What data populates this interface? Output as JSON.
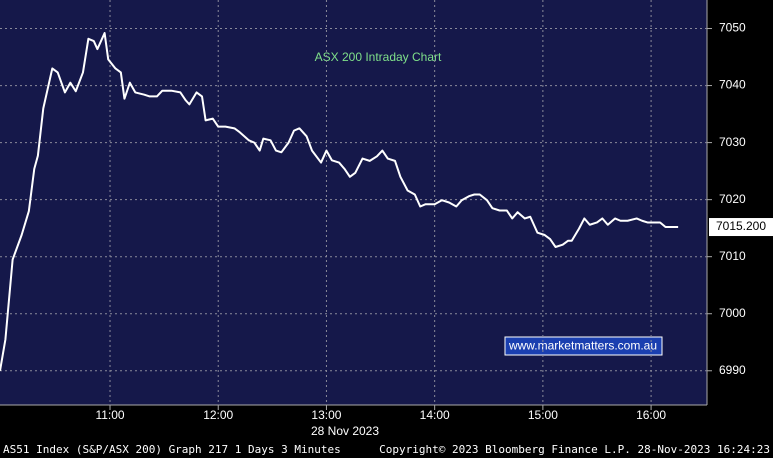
{
  "chart_data": {
    "type": "line",
    "title": "ASX 200 Intraday Chart",
    "annotation": "www.marketmatters.com.au",
    "xlabel": "28 Nov 2023",
    "x": [
      599,
      602,
      606,
      611,
      615,
      618,
      620,
      623,
      628,
      631,
      635,
      638,
      641,
      645,
      648,
      651,
      653,
      657,
      659,
      663,
      666,
      668,
      671,
      674,
      679,
      682,
      686,
      689,
      694,
      699,
      702,
      704,
      708,
      711,
      713,
      717,
      720,
      724,
      729,
      732,
      737,
      740,
      743,
      745,
      749,
      752,
      755,
      759,
      762,
      765,
      769,
      772,
      777,
      780,
      783,
      787,
      790,
      793,
      796,
      800,
      804,
      808,
      811,
      814,
      818,
      821,
      825,
      829,
      832,
      835,
      840,
      844,
      848,
      852,
      855,
      859,
      862,
      865,
      869,
      872,
      876,
      880,
      883,
      886,
      890,
      893,
      897,
      901,
      904,
      907,
      911,
      914,
      916,
      920,
      923,
      926,
      930,
      933,
      936,
      940,
      943,
      947,
      952,
      955,
      958,
      962,
      965,
      968,
      975
    ],
    "series": [
      {
        "name": "AS51 Index",
        "color": "#ffffff",
        "values": [
          6990,
          6995.5,
          7009.5,
          7013.8,
          7018,
          7025.4,
          7027.7,
          7036,
          7043,
          7042.3,
          7038.8,
          7040.5,
          7039,
          7042.3,
          7048.2,
          7047.8,
          7046.4,
          7049.2,
          7044.6,
          7043,
          7042.3,
          7037.7,
          7040.5,
          7038.8,
          7038.4,
          7038.1,
          7038.1,
          7039.1,
          7039.1,
          7038.8,
          7037.4,
          7036.7,
          7038.8,
          7038.1,
          7033.9,
          7034.2,
          7032.8,
          7032.8,
          7032.5,
          7031.8,
          7030.4,
          7030,
          7028.6,
          7030.7,
          7030.4,
          7028.6,
          7028.3,
          7030,
          7032.1,
          7032.5,
          7031.1,
          7028.6,
          7026.5,
          7028.6,
          7026.9,
          7026.5,
          7025.4,
          7024,
          7024.7,
          7027.2,
          7026.8,
          7027.6,
          7028.6,
          7027.2,
          7026.8,
          7024,
          7021.6,
          7020.9,
          7018.8,
          7019.2,
          7019.2,
          7019.9,
          7019.5,
          7018.8,
          7019.9,
          7020.6,
          7020.9,
          7020.9,
          7019.9,
          7018.5,
          7018.1,
          7018.1,
          7016.7,
          7017.8,
          7016.7,
          7017,
          7014.2,
          7013.8,
          7013.1,
          7011.7,
          7012.1,
          7012.8,
          7012.8,
          7014.9,
          7016.7,
          7015.6,
          7016,
          7016.7,
          7015.6,
          7016.7,
          7016.3,
          7016.3,
          7016.7,
          7016.3,
          7016,
          7016,
          7016,
          7015.2,
          7015.2
        ]
      }
    ],
    "last_label": {
      "value": 7015.2,
      "label": "7015.200"
    },
    "xlim": [
      599,
      991
    ],
    "xticks": [
      {
        "value": 660,
        "label": "11:00"
      },
      {
        "value": 720,
        "label": "12:00"
      },
      {
        "value": 780,
        "label": "13:00"
      },
      {
        "value": 840,
        "label": "14:00"
      },
      {
        "value": 900,
        "label": "15:00"
      },
      {
        "value": 960,
        "label": "16:00"
      }
    ],
    "ylim": [
      6984,
      7055
    ],
    "yticks": [
      6990,
      7000,
      7010,
      7020,
      7030,
      7040,
      7050
    ],
    "grid": true
  },
  "footer": {
    "left": "AS51 Index (S&P/ASX 200) Graph 217 1 Days 3 Minutes",
    "center": "Copyright© 2023 Bloomberg Finance L.P.",
    "right": "28-Nov-2023 16:24:23"
  }
}
